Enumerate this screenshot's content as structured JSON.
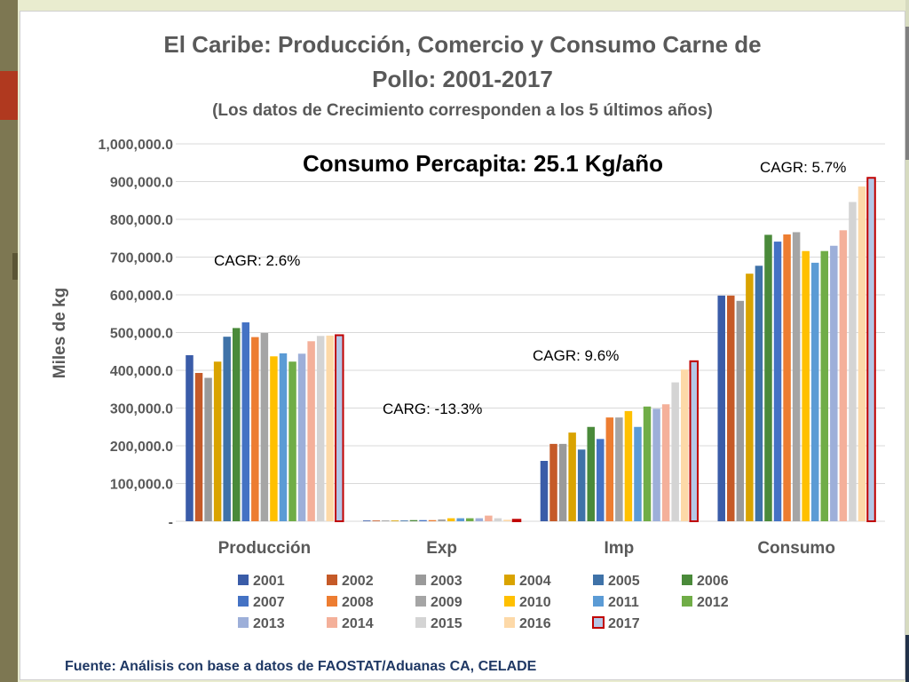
{
  "chart_data": {
    "type": "bar",
    "title": "El Caribe: Producción, Comercio y Consumo Carne de Pollo: 2001-2017",
    "title_lines": [
      "El Caribe: Producción, Comercio y Consumo Carne de",
      "Pollo: 2001-2017"
    ],
    "subtitle": "(Los datos de Crecimiento corresponden a los 5 últimos años)",
    "xlabel": "",
    "ylabel": "Miles de kg",
    "ylim": [
      0,
      1000000
    ],
    "y_ticks": [
      0,
      100000,
      200000,
      300000,
      400000,
      500000,
      600000,
      700000,
      800000,
      900000,
      1000000
    ],
    "y_tick_labels": [
      "-",
      "100,000.0",
      "200,000.0",
      "300,000.0",
      "400,000.0",
      "500,000.0",
      "600,000.0",
      "700,000.0",
      "800,000.0",
      "900,000.0",
      "1,000,000.0"
    ],
    "grid": true,
    "legend_position": "bottom",
    "categories": [
      "Producción",
      "Exp",
      "Imp",
      "Consumo"
    ],
    "series": [
      {
        "name": "2001",
        "color": "#3a5ca8",
        "values": [
          440000,
          2000,
          160000,
          598000
        ]
      },
      {
        "name": "2002",
        "color": "#c55a28",
        "values": [
          393000,
          2000,
          205000,
          598000
        ]
      },
      {
        "name": "2003",
        "color": "#9a9a9a",
        "values": [
          380000,
          2000,
          205000,
          584000
        ]
      },
      {
        "name": "2004",
        "color": "#d9a300",
        "values": [
          423000,
          2000,
          235000,
          656000
        ]
      },
      {
        "name": "2005",
        "color": "#3f72a8",
        "values": [
          489000,
          2000,
          190000,
          677000
        ]
      },
      {
        "name": "2006",
        "color": "#4a8a3a",
        "values": [
          512000,
          3000,
          250000,
          759000
        ]
      },
      {
        "name": "2007",
        "color": "#4472c4",
        "values": [
          527000,
          3000,
          218000,
          741000
        ]
      },
      {
        "name": "2008",
        "color": "#ed7d31",
        "values": [
          488000,
          3000,
          275000,
          760000
        ]
      },
      {
        "name": "2009",
        "color": "#a5a5a5",
        "values": [
          499000,
          5000,
          275000,
          766000
        ]
      },
      {
        "name": "2010",
        "color": "#ffc000",
        "values": [
          437000,
          8000,
          292000,
          716000
        ]
      },
      {
        "name": "2011",
        "color": "#5b9bd5",
        "values": [
          445000,
          8000,
          250000,
          685000
        ]
      },
      {
        "name": "2012",
        "color": "#70ad47",
        "values": [
          423000,
          8000,
          304000,
          716000
        ]
      },
      {
        "name": "2013",
        "color": "#9dafd9",
        "values": [
          444000,
          8000,
          298000,
          730000
        ]
      },
      {
        "name": "2014",
        "color": "#f4b09a",
        "values": [
          477000,
          15000,
          310000,
          771000
        ]
      },
      {
        "name": "2015",
        "color": "#d4d4d4",
        "values": [
          491000,
          8000,
          368000,
          846000
        ]
      },
      {
        "name": "2016",
        "color": "#fdd9a8",
        "values": [
          492000,
          4000,
          402000,
          887000
        ]
      },
      {
        "name": "2017",
        "color": "#b4c7e7",
        "border": "#c00000",
        "values": [
          493000,
          4000,
          424000,
          910000
        ]
      }
    ],
    "annotations": [
      {
        "text": "Consumo Percapita: 25.1 Kg/año"
      },
      {
        "text": "CAGR:  2.6%"
      },
      {
        "text": "CARG: -13.3%"
      },
      {
        "text": "CAGR:  9.6%"
      },
      {
        "text": "CAGR:  5.7%"
      }
    ],
    "source": "Fuente: Análisis con base a datos de FAOSTAT/Aduanas  CA, CELADE"
  }
}
